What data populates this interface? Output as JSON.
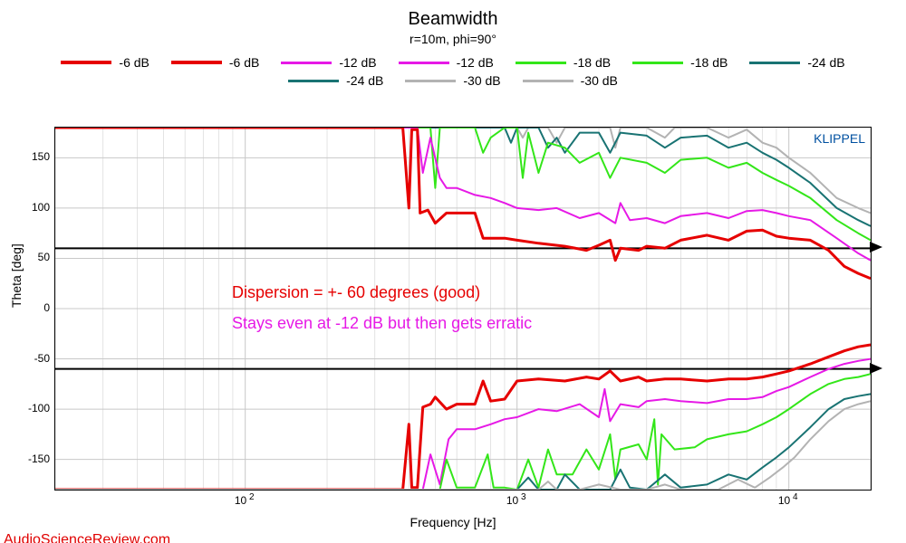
{
  "title": "Beamwidth",
  "subtitle": "r=10m, phi=90°",
  "xlabel": "Frequency [Hz]",
  "ylabel": "Theta [deg]",
  "legend": [
    {
      "label": "-6 dB",
      "color": "#e60000",
      "width": 3
    },
    {
      "label": "-6 dB",
      "color": "#e60000",
      "width": 3
    },
    {
      "label": "-12 dB",
      "color": "#e619e6",
      "width": 2
    },
    {
      "label": "-12 dB",
      "color": "#e619e6",
      "width": 2
    },
    {
      "label": "-18 dB",
      "color": "#33e619",
      "width": 2
    },
    {
      "label": "-18 dB",
      "color": "#33e619",
      "width": 2
    },
    {
      "label": "-24 dB",
      "color": "#197373",
      "width": 2
    },
    {
      "label": "-24 dB",
      "color": "#197373",
      "width": 2
    },
    {
      "label": "-30 dB",
      "color": "#b3b3b3",
      "width": 2
    },
    {
      "label": "-30 dB",
      "color": "#b3b3b3",
      "width": 2
    }
  ],
  "watermark": "AudioScienceReview.com",
  "klippel_label": "KLIPPEL",
  "annotations": [
    {
      "text": "Dispersion = +- 60 degrees (good)",
      "color": "#e60000",
      "freq": 90,
      "theta": 15
    },
    {
      "text": "Stays even at -12 dB but then gets erratic",
      "color": "#e619e6",
      "freq": 90,
      "theta": -15
    }
  ],
  "reference_lines": [
    {
      "theta": 60,
      "color": "#000000",
      "width": 2
    },
    {
      "theta": -60,
      "color": "#000000",
      "width": 2
    }
  ],
  "axes": {
    "xmin": 20,
    "xmax": 20000,
    "xscale": "log",
    "ymin": -180,
    "ymax": 180,
    "yticks": [
      -150,
      -100,
      -50,
      0,
      50,
      100,
      150
    ],
    "xticks_major": [
      {
        "value": 100,
        "label_html": "10<sup>&nbsp;2</sup>"
      },
      {
        "value": 1000,
        "label_html": "10<sup>&nbsp;3</sup>"
      },
      {
        "value": 10000,
        "label_html": "10<sup>&nbsp;4</sup>"
      }
    ],
    "grid_color": "#c8c8c8",
    "grid_width": 1,
    "plot_bg": "#ffffff"
  },
  "series": [
    {
      "name": "-30 dB upper",
      "color": "#b3b3b3",
      "width": 2,
      "points": [
        [
          20,
          180
        ],
        [
          1000,
          180
        ],
        [
          1050,
          170
        ],
        [
          1100,
          180
        ],
        [
          1300,
          180
        ],
        [
          1400,
          165
        ],
        [
          1500,
          180
        ],
        [
          2200,
          180
        ],
        [
          2300,
          160
        ],
        [
          2400,
          180
        ],
        [
          3000,
          180
        ],
        [
          3500,
          170
        ],
        [
          3800,
          180
        ],
        [
          5000,
          180
        ],
        [
          6000,
          170
        ],
        [
          7000,
          178
        ],
        [
          8000,
          165
        ],
        [
          9000,
          160
        ],
        [
          10000,
          150
        ],
        [
          12000,
          135
        ],
        [
          15000,
          110
        ],
        [
          18000,
          100
        ],
        [
          20000,
          95
        ]
      ]
    },
    {
      "name": "-24 dB upper",
      "color": "#197373",
      "width": 2,
      "points": [
        [
          20,
          180
        ],
        [
          900,
          180
        ],
        [
          950,
          165
        ],
        [
          1000,
          180
        ],
        [
          1200,
          180
        ],
        [
          1300,
          160
        ],
        [
          1400,
          170
        ],
        [
          1500,
          155
        ],
        [
          1700,
          175
        ],
        [
          2000,
          175
        ],
        [
          2200,
          155
        ],
        [
          2400,
          175
        ],
        [
          3000,
          172
        ],
        [
          3500,
          160
        ],
        [
          4000,
          170
        ],
        [
          5000,
          172
        ],
        [
          6000,
          160
        ],
        [
          7000,
          165
        ],
        [
          8000,
          155
        ],
        [
          9000,
          148
        ],
        [
          10000,
          140
        ],
        [
          12000,
          125
        ],
        [
          15000,
          100
        ],
        [
          18000,
          88
        ],
        [
          20000,
          82
        ]
      ]
    },
    {
      "name": "-18 dB upper",
      "color": "#33e619",
      "width": 2,
      "points": [
        [
          20,
          180
        ],
        [
          480,
          180
        ],
        [
          500,
          120
        ],
        [
          520,
          180
        ],
        [
          700,
          180
        ],
        [
          750,
          155
        ],
        [
          800,
          170
        ],
        [
          900,
          180
        ],
        [
          1000,
          180
        ],
        [
          1050,
          130
        ],
        [
          1100,
          175
        ],
        [
          1200,
          135
        ],
        [
          1300,
          165
        ],
        [
          1500,
          160
        ],
        [
          1700,
          145
        ],
        [
          2000,
          155
        ],
        [
          2200,
          130
        ],
        [
          2400,
          150
        ],
        [
          3000,
          145
        ],
        [
          3500,
          135
        ],
        [
          4000,
          148
        ],
        [
          5000,
          150
        ],
        [
          6000,
          140
        ],
        [
          7000,
          145
        ],
        [
          8000,
          135
        ],
        [
          9000,
          128
        ],
        [
          10000,
          122
        ],
        [
          12000,
          110
        ],
        [
          15000,
          88
        ],
        [
          18000,
          75
        ],
        [
          20000,
          68
        ]
      ]
    },
    {
      "name": "-12 dB upper",
      "color": "#e619e6",
      "width": 2,
      "points": [
        [
          20,
          180
        ],
        [
          430,
          180
        ],
        [
          450,
          135
        ],
        [
          480,
          170
        ],
        [
          520,
          130
        ],
        [
          550,
          120
        ],
        [
          600,
          120
        ],
        [
          700,
          113
        ],
        [
          800,
          110
        ],
        [
          900,
          105
        ],
        [
          1000,
          100
        ],
        [
          1200,
          98
        ],
        [
          1400,
          100
        ],
        [
          1700,
          90
        ],
        [
          2000,
          95
        ],
        [
          2300,
          85
        ],
        [
          2400,
          105
        ],
        [
          2600,
          88
        ],
        [
          3000,
          90
        ],
        [
          3500,
          85
        ],
        [
          4000,
          92
        ],
        [
          5000,
          95
        ],
        [
          6000,
          90
        ],
        [
          7000,
          97
        ],
        [
          8000,
          98
        ],
        [
          9000,
          95
        ],
        [
          10000,
          92
        ],
        [
          12000,
          88
        ],
        [
          15000,
          70
        ],
        [
          18000,
          55
        ],
        [
          20000,
          48
        ]
      ]
    },
    {
      "name": "-6 dB upper",
      "color": "#e60000",
      "width": 3,
      "points": [
        [
          20,
          180
        ],
        [
          380,
          180
        ],
        [
          400,
          100
        ],
        [
          410,
          178
        ],
        [
          430,
          178
        ],
        [
          440,
          95
        ],
        [
          470,
          98
        ],
        [
          500,
          85
        ],
        [
          550,
          95
        ],
        [
          600,
          95
        ],
        [
          700,
          95
        ],
        [
          750,
          70
        ],
        [
          800,
          70
        ],
        [
          900,
          70
        ],
        [
          1000,
          68
        ],
        [
          1200,
          65
        ],
        [
          1500,
          62
        ],
        [
          1800,
          58
        ],
        [
          2000,
          63
        ],
        [
          2200,
          68
        ],
        [
          2300,
          48
        ],
        [
          2400,
          60
        ],
        [
          2800,
          58
        ],
        [
          3000,
          62
        ],
        [
          3500,
          60
        ],
        [
          4000,
          68
        ],
        [
          5000,
          73
        ],
        [
          6000,
          68
        ],
        [
          7000,
          77
        ],
        [
          8000,
          78
        ],
        [
          9000,
          72
        ],
        [
          10000,
          70
        ],
        [
          12000,
          68
        ],
        [
          14000,
          58
        ],
        [
          16000,
          42
        ],
        [
          18000,
          35
        ],
        [
          20000,
          30
        ]
      ]
    },
    {
      "name": "-6 dB lower",
      "color": "#e60000",
      "width": 3,
      "points": [
        [
          20,
          -180
        ],
        [
          380,
          -180
        ],
        [
          400,
          -115
        ],
        [
          410,
          -178
        ],
        [
          430,
          -178
        ],
        [
          450,
          -98
        ],
        [
          480,
          -95
        ],
        [
          500,
          -88
        ],
        [
          550,
          -100
        ],
        [
          600,
          -95
        ],
        [
          700,
          -95
        ],
        [
          750,
          -72
        ],
        [
          800,
          -92
        ],
        [
          900,
          -90
        ],
        [
          1000,
          -72
        ],
        [
          1200,
          -70
        ],
        [
          1500,
          -72
        ],
        [
          1800,
          -68
        ],
        [
          2000,
          -70
        ],
        [
          2200,
          -62
        ],
        [
          2400,
          -72
        ],
        [
          2800,
          -68
        ],
        [
          3000,
          -72
        ],
        [
          3500,
          -70
        ],
        [
          4000,
          -70
        ],
        [
          5000,
          -72
        ],
        [
          6000,
          -70
        ],
        [
          7000,
          -70
        ],
        [
          8000,
          -68
        ],
        [
          9000,
          -65
        ],
        [
          10000,
          -62
        ],
        [
          12000,
          -55
        ],
        [
          14000,
          -48
        ],
        [
          16000,
          -42
        ],
        [
          18000,
          -38
        ],
        [
          20000,
          -36
        ]
      ]
    },
    {
      "name": "-12 dB lower",
      "color": "#e619e6",
      "width": 2,
      "points": [
        [
          20,
          -180
        ],
        [
          450,
          -180
        ],
        [
          480,
          -145
        ],
        [
          520,
          -175
        ],
        [
          560,
          -130
        ],
        [
          600,
          -120
        ],
        [
          700,
          -120
        ],
        [
          800,
          -115
        ],
        [
          900,
          -110
        ],
        [
          1000,
          -108
        ],
        [
          1200,
          -100
        ],
        [
          1400,
          -102
        ],
        [
          1700,
          -95
        ],
        [
          2000,
          -108
        ],
        [
          2100,
          -80
        ],
        [
          2200,
          -112
        ],
        [
          2400,
          -95
        ],
        [
          2800,
          -98
        ],
        [
          3000,
          -92
        ],
        [
          3500,
          -90
        ],
        [
          4000,
          -92
        ],
        [
          5000,
          -94
        ],
        [
          6000,
          -90
        ],
        [
          7000,
          -90
        ],
        [
          8000,
          -88
        ],
        [
          9000,
          -82
        ],
        [
          10000,
          -78
        ],
        [
          12000,
          -68
        ],
        [
          14000,
          -60
        ],
        [
          16000,
          -55
        ],
        [
          18000,
          -52
        ],
        [
          20000,
          -50
        ]
      ]
    },
    {
      "name": "-18 dB lower",
      "color": "#33e619",
      "width": 2,
      "points": [
        [
          20,
          -180
        ],
        [
          520,
          -180
        ],
        [
          550,
          -150
        ],
        [
          600,
          -178
        ],
        [
          700,
          -178
        ],
        [
          780,
          -145
        ],
        [
          820,
          -178
        ],
        [
          900,
          -178
        ],
        [
          1000,
          -180
        ],
        [
          1100,
          -150
        ],
        [
          1200,
          -178
        ],
        [
          1300,
          -140
        ],
        [
          1400,
          -165
        ],
        [
          1600,
          -165
        ],
        [
          1800,
          -140
        ],
        [
          2000,
          -160
        ],
        [
          2200,
          -125
        ],
        [
          2300,
          -170
        ],
        [
          2400,
          -140
        ],
        [
          2800,
          -135
        ],
        [
          3000,
          -150
        ],
        [
          3200,
          -110
        ],
        [
          3300,
          -175
        ],
        [
          3400,
          -125
        ],
        [
          3800,
          -140
        ],
        [
          4500,
          -138
        ],
        [
          5000,
          -130
        ],
        [
          6000,
          -125
        ],
        [
          7000,
          -122
        ],
        [
          8000,
          -115
        ],
        [
          9000,
          -108
        ],
        [
          10000,
          -100
        ],
        [
          12000,
          -85
        ],
        [
          14000,
          -75
        ],
        [
          16000,
          -70
        ],
        [
          18000,
          -68
        ],
        [
          20000,
          -65
        ]
      ]
    },
    {
      "name": "-24 dB lower",
      "color": "#197373",
      "width": 2,
      "points": [
        [
          20,
          -180
        ],
        [
          1000,
          -180
        ],
        [
          1100,
          -168
        ],
        [
          1200,
          -180
        ],
        [
          1400,
          -180
        ],
        [
          1500,
          -165
        ],
        [
          1700,
          -180
        ],
        [
          2200,
          -180
        ],
        [
          2400,
          -160
        ],
        [
          2600,
          -178
        ],
        [
          3000,
          -180
        ],
        [
          3500,
          -165
        ],
        [
          4000,
          -178
        ],
        [
          5000,
          -175
        ],
        [
          6000,
          -165
        ],
        [
          7000,
          -170
        ],
        [
          8000,
          -158
        ],
        [
          9000,
          -148
        ],
        [
          10000,
          -138
        ],
        [
          12000,
          -118
        ],
        [
          14000,
          -100
        ],
        [
          16000,
          -90
        ],
        [
          18000,
          -87
        ],
        [
          20000,
          -85
        ]
      ]
    },
    {
      "name": "-30 dB lower",
      "color": "#b3b3b3",
      "width": 2,
      "points": [
        [
          20,
          -180
        ],
        [
          1200,
          -180
        ],
        [
          1300,
          -172
        ],
        [
          1400,
          -180
        ],
        [
          1700,
          -180
        ],
        [
          2000,
          -175
        ],
        [
          2400,
          -180
        ],
        [
          3000,
          -180
        ],
        [
          3500,
          -175
        ],
        [
          4000,
          -180
        ],
        [
          5500,
          -180
        ],
        [
          6500,
          -170
        ],
        [
          7500,
          -178
        ],
        [
          8500,
          -168
        ],
        [
          9500,
          -158
        ],
        [
          10500,
          -148
        ],
        [
          12000,
          -130
        ],
        [
          14000,
          -112
        ],
        [
          16000,
          -100
        ],
        [
          18000,
          -95
        ],
        [
          20000,
          -92
        ]
      ]
    }
  ]
}
